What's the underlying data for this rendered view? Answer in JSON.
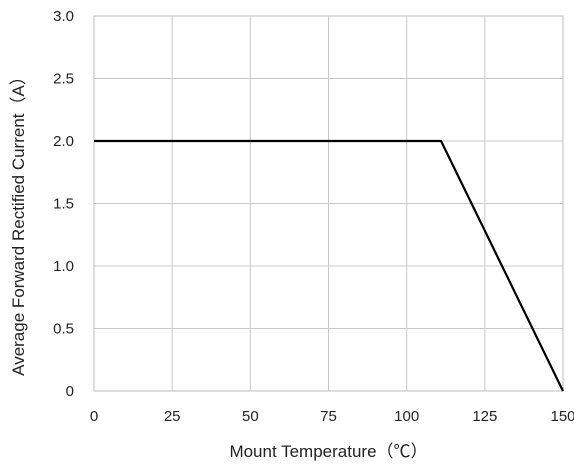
{
  "chart_data": {
    "type": "line",
    "xlabel": "Mount Temperature（℃）",
    "ylabel": "Average Forward Rectified Current（A）",
    "xlim": [
      0,
      150
    ],
    "ylim": [
      0,
      3.0
    ],
    "x_ticks": [
      0,
      25,
      50,
      75,
      100,
      125,
      150
    ],
    "x_tick_labels": [
      "0",
      "25",
      "50",
      "75",
      "100",
      "125",
      "150"
    ],
    "y_ticks": [
      0,
      0.5,
      1.0,
      1.5,
      2.0,
      2.5,
      3.0
    ],
    "y_tick_labels": [
      "0",
      "0.5",
      "1.0",
      "1.5",
      "2.0",
      "2.5",
      "3.0"
    ],
    "grid": true,
    "series": [
      {
        "x": [
          0,
          111,
          150
        ],
        "y": [
          2.0,
          2.0,
          0
        ],
        "color": "#000000"
      }
    ]
  }
}
